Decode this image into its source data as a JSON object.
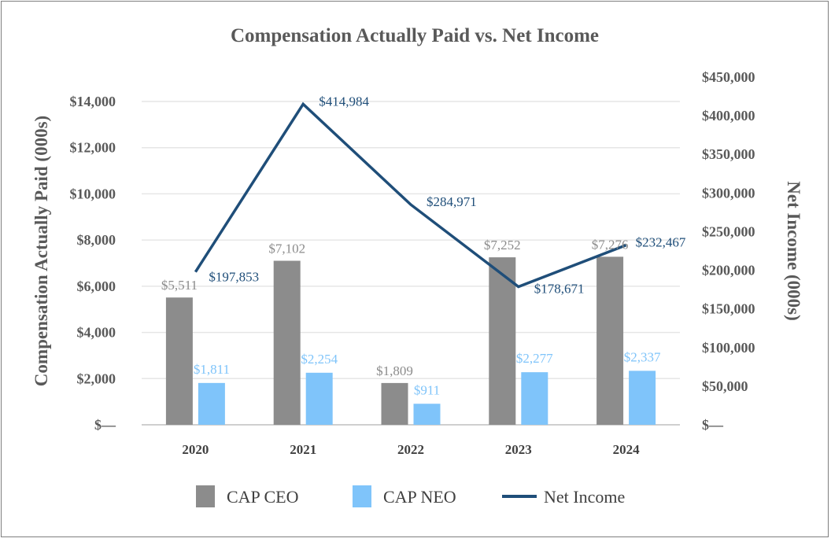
{
  "chart_data": {
    "type": "bar",
    "title": "Compensation Actually Paid vs. Net Income",
    "categories": [
      "2020",
      "2021",
      "2022",
      "2023",
      "2024"
    ],
    "ylabel": "Compensation Actually Paid (000s)",
    "y2label": "Net Income (000s)",
    "ylim": [
      0,
      14000
    ],
    "y2lim": [
      0,
      450000
    ],
    "yticks": [
      "$—",
      "$2,000",
      "$4,000",
      "$6,000",
      "$8,000",
      "$10,000",
      "$12,000",
      "$14,000"
    ],
    "y2ticks": [
      "$—",
      "$50,000",
      "$100,000",
      "$150,000",
      "$200,000",
      "$250,000",
      "$300,000",
      "$350,000",
      "$400,000",
      "$450,000"
    ],
    "grid": true,
    "legend_position": "bottom",
    "series": [
      {
        "name": "CAP CEO",
        "type": "bar",
        "axis": "left",
        "values": [
          5511,
          7102,
          1809,
          7252,
          7276
        ],
        "labels": [
          "$5,511",
          "$7,102",
          "$1,809",
          "$7,252",
          "$7,276"
        ],
        "color": "#8c8c8c"
      },
      {
        "name": "CAP NEO",
        "type": "bar",
        "axis": "left",
        "values": [
          1811,
          2254,
          911,
          2277,
          2337
        ],
        "labels": [
          "$1,811",
          "$2,254",
          "$911",
          "$2,277",
          "$2,337"
        ],
        "color": "#7fc4fa"
      },
      {
        "name": "Net Income",
        "type": "line",
        "axis": "right",
        "values": [
          197853,
          414984,
          284971,
          178671,
          232467
        ],
        "labels": [
          "$197,853",
          "$414,984",
          "$284,971",
          "$178,671",
          "$232,467"
        ],
        "color": "#1f4e79"
      }
    ]
  }
}
